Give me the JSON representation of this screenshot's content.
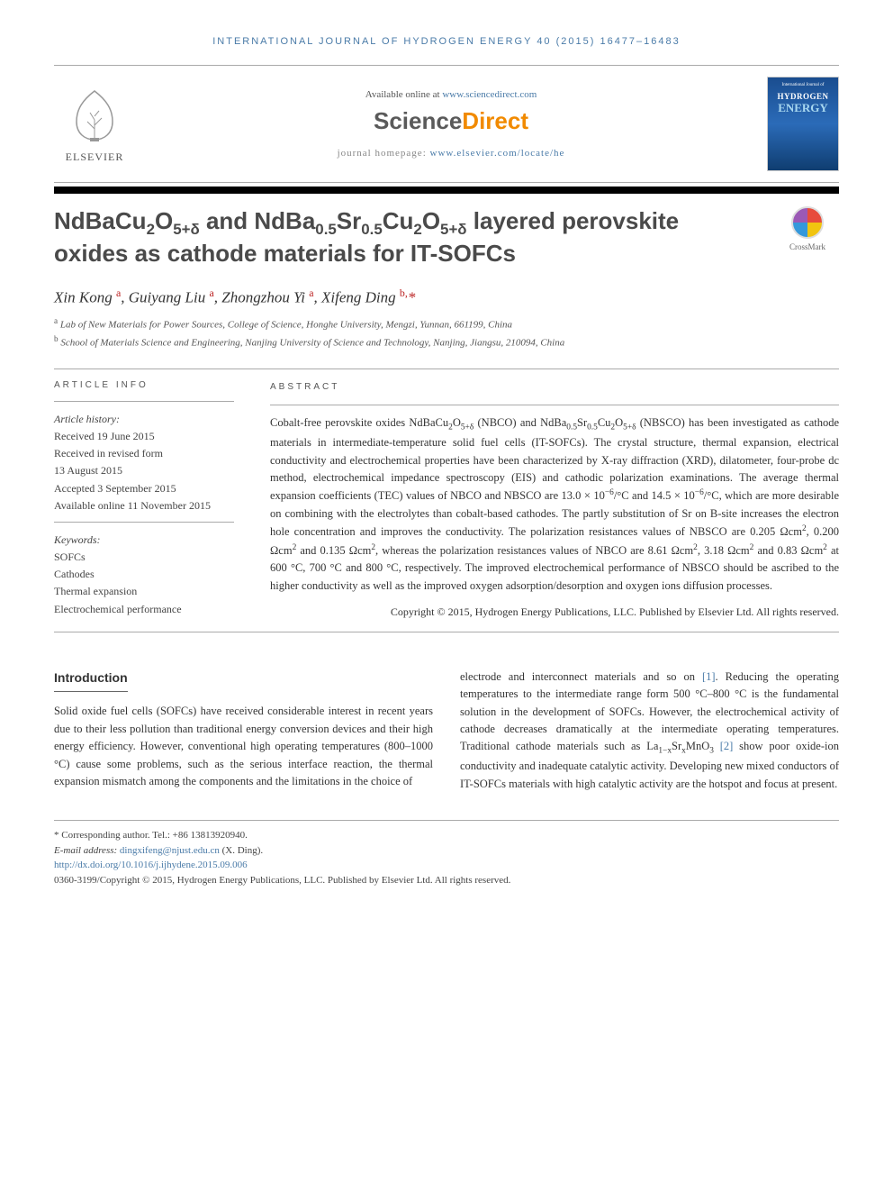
{
  "journal_header": "INTERNATIONAL JOURNAL OF HYDROGEN ENERGY 40 (2015) 16477–16483",
  "top": {
    "available_prefix": "Available online at ",
    "available_url": "www.sciencedirect.com",
    "sd_logo_left": "Science",
    "sd_logo_right": "Direct",
    "homepage_prefix": "journal homepage: ",
    "homepage_url": "www.elsevier.com/locate/he",
    "elsevier_label": "ELSEVIER",
    "cover_top": "International Journal of",
    "cover_hydrogen": "HYDROGEN",
    "cover_energy": "ENERGY"
  },
  "title_html": "NdBaCu<sub>2</sub>O<sub>5+δ</sub> and NdBa<sub>0.5</sub>Sr<sub>0.5</sub>Cu<sub>2</sub>O<sub>5+δ</sub> layered perovskite oxides as cathode materials for IT-SOFCs",
  "crossmark_label": "CrossMark",
  "authors_html": "Xin Kong <sup>a</sup>, Guiyang Liu <sup>a</sup>, Zhongzhou Yi <sup>a</sup>, Xifeng Ding <sup>b,</sup><span class=\"star\">*</span>",
  "affiliations": {
    "a": "Lab of New Materials for Power Sources, College of Science, Honghe University, Mengzi, Yunnan, 661199, China",
    "b": "School of Materials Science and Engineering, Nanjing University of Science and Technology, Nanjing, Jiangsu, 210094, China"
  },
  "info": {
    "label": "ARTICLE INFO",
    "history_hdr": "Article history:",
    "history": [
      "Received 19 June 2015",
      "Received in revised form",
      "13 August 2015",
      "Accepted 3 September 2015",
      "Available online 11 November 2015"
    ],
    "keywords_hdr": "Keywords:",
    "keywords": [
      "SOFCs",
      "Cathodes",
      "Thermal expansion",
      "Electrochemical performance"
    ]
  },
  "abstract": {
    "label": "ABSTRACT",
    "text_html": "Cobalt-free perovskite oxides NdBaCu<sub>2</sub>O<sub>5+δ</sub> (NBCO) and NdBa<sub>0.5</sub>Sr<sub>0.5</sub>Cu<sub>2</sub>O<sub>5+δ</sub> (NBSCO) has been investigated as cathode materials in intermediate-temperature solid fuel cells (IT-SOFCs). The crystal structure, thermal expansion, electrical conductivity and electrochemical properties have been characterized by X-ray diffraction (XRD), dilatometer, four-probe dc method, electrochemical impedance spectroscopy (EIS) and cathodic polarization examinations. The average thermal expansion coefficients (TEC) values of NBCO and NBSCO are 13.0 × 10<sup>−6</sup>/°C and 14.5 × 10<sup>−6</sup>/°C, which are more desirable on combining with the electrolytes than cobalt-based cathodes. The partly substitution of Sr on B-site increases the electron hole concentration and improves the conductivity. The polarization resistances values of NBSCO are 0.205 Ωcm<sup>2</sup>, 0.200 Ωcm<sup>2</sup> and 0.135 Ωcm<sup>2</sup>, whereas the polarization resistances values of NBCO are 8.61 Ωcm<sup>2</sup>, 3.18 Ωcm<sup>2</sup> and 0.83 Ωcm<sup>2</sup> at 600 °C, 700 °C and 800 °C, respectively. The improved electrochemical performance of NBSCO should be ascribed to the higher conductivity as well as the improved oxygen adsorption/desorption and oxygen ions diffusion processes.",
    "copyright": "Copyright © 2015, Hydrogen Energy Publications, LLC. Published by Elsevier Ltd. All rights reserved."
  },
  "body": {
    "intro_heading": "Introduction",
    "col1_html": "Solid oxide fuel cells (SOFCs) have received considerable interest in recent years due to their less pollution than traditional energy conversion devices and their high energy efficiency. However, conventional high operating temperatures (800–1000 °C) cause some problems, such as the serious interface reaction, the thermal expansion mismatch among the components and the limitations in the choice of",
    "col2_html": "electrode and interconnect materials and so on <span class=\"ref-link\">[1]</span>. Reducing the operating temperatures to the intermediate range form 500 °C–800 °C is the fundamental solution in the development of SOFCs. However, the electrochemical activity of cathode decreases dramatically at the intermediate operating temperatures. Traditional cathode materials such as La<sub>1−x</sub>Sr<sub>x</sub>MnO<sub>3</sub> <span class=\"ref-link\">[2]</span> show poor oxide-ion conductivity and inadequate catalytic activity. Developing new mixed conductors of IT-SOFCs materials with high catalytic activity are the hotspot and focus at present."
  },
  "footnotes": {
    "corr": "* Corresponding author. Tel.: +86 13813920940.",
    "email_label": "E-mail address: ",
    "email": "dingxifeng@njust.edu.cn",
    "email_suffix": " (X. Ding).",
    "doi": "http://dx.doi.org/10.1016/j.ijhydene.2015.09.006",
    "issn_line": "0360-3199/Copyright © 2015, Hydrogen Energy Publications, LLC. Published by Elsevier Ltd. All rights reserved."
  },
  "colors": {
    "link": "#4a7ba8",
    "accent_orange": "#f18a00",
    "text": "#333333"
  }
}
